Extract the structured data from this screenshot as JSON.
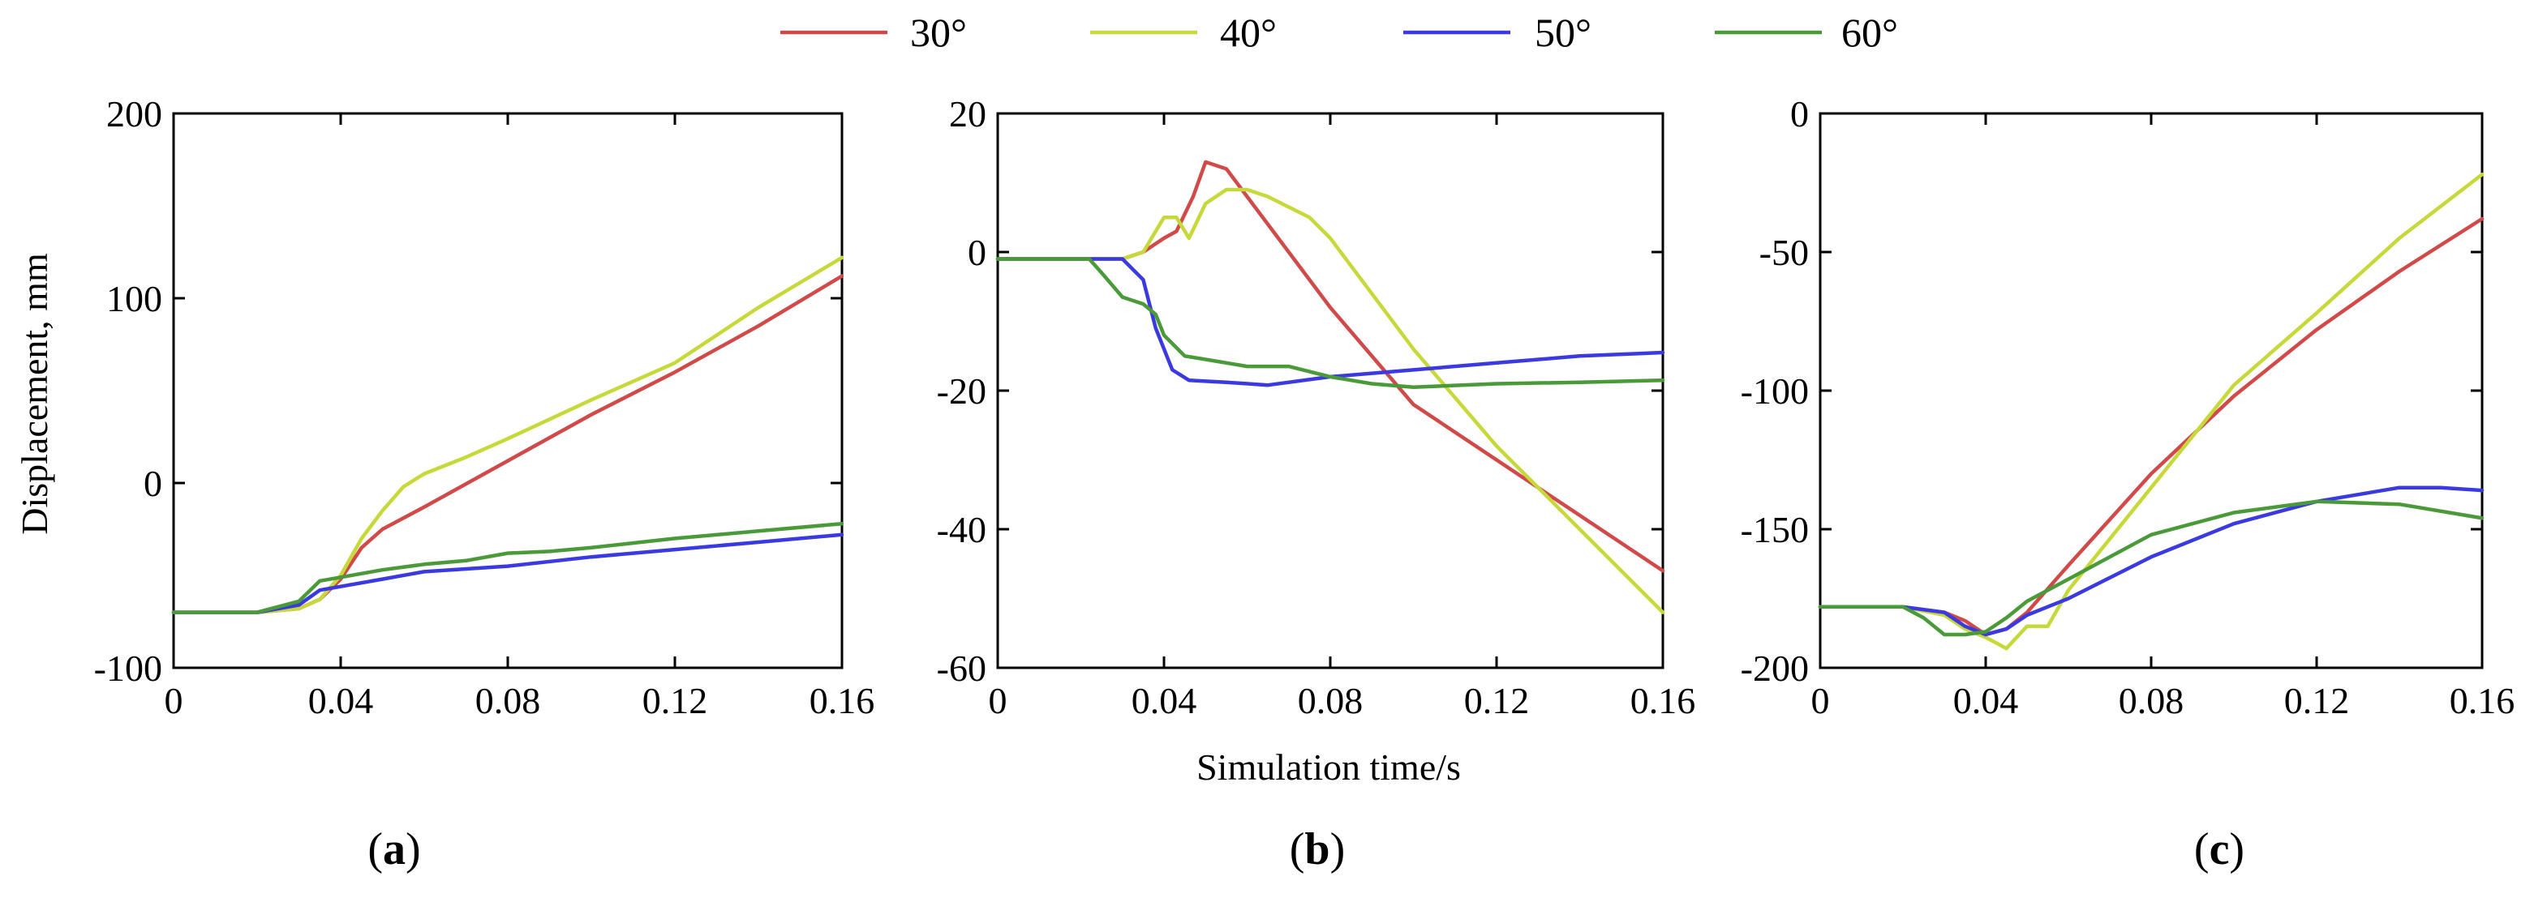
{
  "legend": {
    "items": [
      {
        "label": "30°",
        "color": "#d04a4a"
      },
      {
        "label": "40°",
        "color": "#c7d93a"
      },
      {
        "label": "50°",
        "color": "#3a3ae0"
      },
      {
        "label": "60°",
        "color": "#4a9a3a"
      }
    ]
  },
  "shared": {
    "xlabel": "Simulation time/s",
    "ylabel": "Displacement, mm"
  },
  "chart_data": [
    {
      "type": "line",
      "panel_label": "a",
      "xlim": [
        0,
        0.16
      ],
      "ylim": [
        -100,
        200
      ],
      "xticks": [
        0,
        0.04,
        0.08,
        0.12,
        0.16
      ],
      "xtick_labels": [
        "0",
        "0.04",
        "0.08",
        "0.12",
        "0.16"
      ],
      "yticks": [
        -100,
        0,
        100,
        200
      ],
      "ytick_labels": [
        "-100",
        "0",
        "100",
        "200"
      ],
      "series": [
        {
          "name": "30°",
          "color": "#d04a4a",
          "x": [
            0,
            0.02,
            0.03,
            0.035,
            0.04,
            0.045,
            0.05,
            0.06,
            0.08,
            0.1,
            0.12,
            0.14,
            0.16
          ],
          "y": [
            -70,
            -70,
            -68,
            -63,
            -52,
            -35,
            -25,
            -13,
            12,
            37,
            60,
            85,
            112
          ]
        },
        {
          "name": "40°",
          "color": "#c7d93a",
          "x": [
            0,
            0.02,
            0.03,
            0.035,
            0.04,
            0.045,
            0.05,
            0.055,
            0.06,
            0.07,
            0.08,
            0.1,
            0.12,
            0.14,
            0.16
          ],
          "y": [
            -70,
            -70,
            -68,
            -63,
            -50,
            -30,
            -15,
            -2,
            5,
            14,
            24,
            45,
            65,
            95,
            122
          ]
        },
        {
          "name": "50°",
          "color": "#3a3ae0",
          "x": [
            0,
            0.02,
            0.03,
            0.035,
            0.04,
            0.05,
            0.06,
            0.08,
            0.1,
            0.12,
            0.14,
            0.16
          ],
          "y": [
            -70,
            -70,
            -66,
            -58,
            -56,
            -52,
            -48,
            -45,
            -40,
            -36,
            -32,
            -28
          ]
        },
        {
          "name": "60°",
          "color": "#4a9a3a",
          "x": [
            0,
            0.02,
            0.03,
            0.035,
            0.04,
            0.05,
            0.06,
            0.07,
            0.08,
            0.09,
            0.1,
            0.12,
            0.14,
            0.16
          ],
          "y": [
            -70,
            -70,
            -64,
            -53,
            -51,
            -47,
            -44,
            -42,
            -38,
            -37,
            -35,
            -30,
            -26,
            -22
          ]
        }
      ]
    },
    {
      "type": "line",
      "panel_label": "b",
      "xlim": [
        0,
        0.16
      ],
      "ylim": [
        -60,
        20
      ],
      "xticks": [
        0,
        0.04,
        0.08,
        0.12,
        0.16
      ],
      "xtick_labels": [
        "0",
        "0.04",
        "0.08",
        "0.12",
        "0.16"
      ],
      "yticks": [
        -60,
        -40,
        -20,
        0,
        20
      ],
      "ytick_labels": [
        "-60",
        "-40",
        "-20",
        "0",
        "20"
      ],
      "series": [
        {
          "name": "30°",
          "color": "#d04a4a",
          "x": [
            0,
            0.02,
            0.03,
            0.035,
            0.04,
            0.043,
            0.047,
            0.05,
            0.055,
            0.06,
            0.08,
            0.1,
            0.12,
            0.14,
            0.16
          ],
          "y": [
            -1,
            -1,
            -1,
            0,
            2,
            3,
            8,
            13,
            12,
            8,
            -8,
            -22,
            -30,
            -38,
            -46
          ]
        },
        {
          "name": "40°",
          "color": "#c7d93a",
          "x": [
            0,
            0.02,
            0.03,
            0.035,
            0.04,
            0.043,
            0.046,
            0.05,
            0.055,
            0.06,
            0.065,
            0.075,
            0.08,
            0.1,
            0.12,
            0.14,
            0.16
          ],
          "y": [
            -1,
            -1,
            -1,
            0,
            5,
            5,
            2,
            7,
            9,
            9,
            8,
            5,
            2,
            -14,
            -28,
            -40,
            -52
          ]
        },
        {
          "name": "50°",
          "color": "#3a3ae0",
          "x": [
            0,
            0.02,
            0.03,
            0.035,
            0.038,
            0.042,
            0.046,
            0.055,
            0.065,
            0.08,
            0.1,
            0.12,
            0.14,
            0.16
          ],
          "y": [
            -1,
            -1,
            -1,
            -4,
            -11,
            -17,
            -18.5,
            -18.8,
            -19.2,
            -18,
            -17,
            -16,
            -15,
            -14.5
          ]
        },
        {
          "name": "60°",
          "color": "#4a9a3a",
          "x": [
            0,
            0.022,
            0.025,
            0.03,
            0.035,
            0.038,
            0.04,
            0.045,
            0.05,
            0.06,
            0.07,
            0.08,
            0.09,
            0.1,
            0.12,
            0.14,
            0.16
          ],
          "y": [
            -1,
            -1,
            -3,
            -6.5,
            -7.5,
            -9,
            -12,
            -15,
            -15.5,
            -16.5,
            -16.5,
            -18,
            -19,
            -19.5,
            -19,
            -18.8,
            -18.5
          ]
        }
      ]
    },
    {
      "type": "line",
      "panel_label": "c",
      "xlim": [
        0,
        0.16
      ],
      "ylim": [
        -200,
        0
      ],
      "xticks": [
        0,
        0.04,
        0.08,
        0.12,
        0.16
      ],
      "xtick_labels": [
        "0",
        "0.04",
        "0.08",
        "0.12",
        "0.16"
      ],
      "yticks": [
        -200,
        -150,
        -100,
        -50,
        0
      ],
      "ytick_labels": [
        "-200",
        "-150",
        "-100",
        "-50",
        "0"
      ],
      "series": [
        {
          "name": "30°",
          "color": "#d04a4a",
          "x": [
            0,
            0.02,
            0.03,
            0.035,
            0.04,
            0.045,
            0.05,
            0.06,
            0.08,
            0.1,
            0.12,
            0.14,
            0.16
          ],
          "y": [
            -178,
            -178,
            -180,
            -183,
            -188,
            -186,
            -180,
            -163,
            -130,
            -102,
            -78,
            -57,
            -38
          ]
        },
        {
          "name": "40°",
          "color": "#c7d93a",
          "x": [
            0,
            0.02,
            0.03,
            0.035,
            0.04,
            0.045,
            0.05,
            0.055,
            0.06,
            0.08,
            0.1,
            0.12,
            0.14,
            0.16
          ],
          "y": [
            -178,
            -178,
            -181,
            -186,
            -189,
            -193,
            -185,
            -185,
            -172,
            -135,
            -98,
            -72,
            -45,
            -22
          ]
        },
        {
          "name": "50°",
          "color": "#3a3ae0",
          "x": [
            0,
            0.02,
            0.03,
            0.035,
            0.04,
            0.045,
            0.05,
            0.06,
            0.08,
            0.1,
            0.12,
            0.14,
            0.15,
            0.16
          ],
          "y": [
            -178,
            -178,
            -180,
            -185,
            -188,
            -186,
            -181,
            -175,
            -160,
            -148,
            -140,
            -135,
            -135,
            -136
          ]
        },
        {
          "name": "60°",
          "color": "#4a9a3a",
          "x": [
            0,
            0.02,
            0.025,
            0.03,
            0.035,
            0.04,
            0.045,
            0.05,
            0.06,
            0.08,
            0.1,
            0.12,
            0.14,
            0.16
          ],
          "y": [
            -178,
            -178,
            -182,
            -188,
            -188,
            -187,
            -182,
            -176,
            -168,
            -152,
            -144,
            -140,
            -141,
            -146
          ]
        }
      ]
    }
  ]
}
